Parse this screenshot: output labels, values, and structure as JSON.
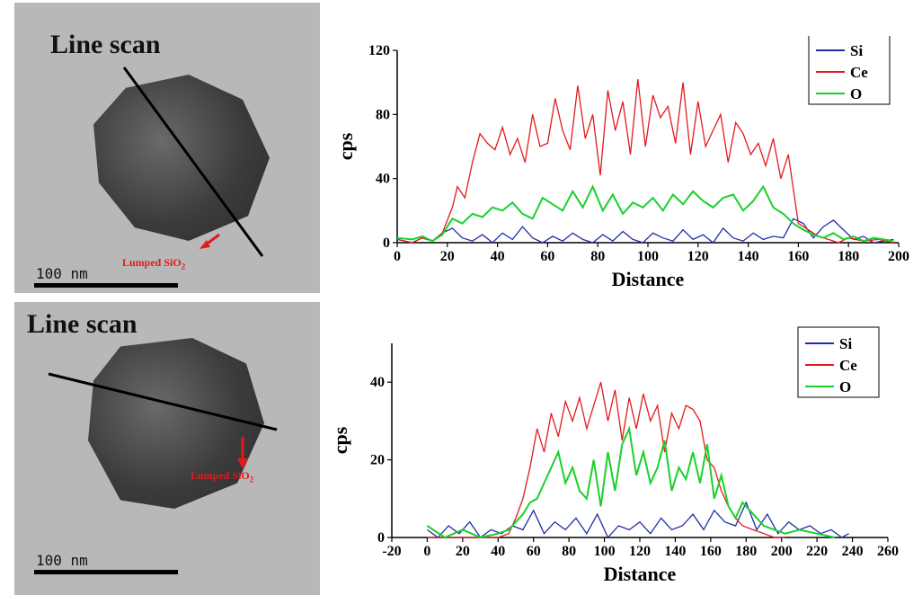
{
  "images": [
    {
      "title": "Line scan",
      "annotation_main": "Lumped SiO",
      "annotation_sub": "2",
      "scale": "100 nm"
    },
    {
      "title": "Line scan",
      "annotation_main": "Lumped SiO",
      "annotation_sub": "2",
      "scale": "100 nm"
    }
  ],
  "colors": {
    "Si": "#1f2ea8",
    "Ce": "#e31a1c",
    "O": "#19d12a"
  },
  "chart_data": [
    {
      "type": "line",
      "xlabel": "Distance",
      "ylabel": "cps",
      "xlim": [
        0,
        200
      ],
      "ylim": [
        0,
        120
      ],
      "xticks": [
        0,
        20,
        40,
        60,
        80,
        100,
        120,
        140,
        160,
        180,
        200
      ],
      "yticks": [
        0,
        40,
        80,
        120
      ],
      "legend_position": "top-right",
      "series": [
        {
          "name": "Si",
          "x": [
            0,
            6,
            10,
            14,
            18,
            22,
            26,
            30,
            34,
            38,
            42,
            46,
            50,
            54,
            58,
            62,
            66,
            70,
            74,
            78,
            82,
            86,
            90,
            94,
            98,
            102,
            106,
            110,
            114,
            118,
            122,
            126,
            130,
            134,
            138,
            142,
            146,
            150,
            154,
            158,
            162,
            166,
            170,
            174,
            178,
            182,
            186,
            190,
            194,
            198
          ],
          "values": [
            2,
            0,
            3,
            1,
            6,
            9,
            3,
            1,
            5,
            0,
            6,
            2,
            10,
            3,
            0,
            4,
            1,
            6,
            2,
            0,
            5,
            1,
            7,
            2,
            0,
            6,
            3,
            1,
            8,
            2,
            5,
            0,
            9,
            3,
            1,
            6,
            2,
            4,
            3,
            15,
            12,
            3,
            10,
            14,
            8,
            2,
            4,
            0,
            1,
            2
          ]
        },
        {
          "name": "Ce",
          "x": [
            0,
            6,
            10,
            14,
            18,
            22,
            24,
            27,
            30,
            33,
            36,
            39,
            42,
            45,
            48,
            51,
            54,
            57,
            60,
            63,
            66,
            69,
            72,
            75,
            78,
            81,
            84,
            87,
            90,
            93,
            96,
            99,
            102,
            105,
            108,
            111,
            114,
            117,
            120,
            123,
            126,
            129,
            132,
            135,
            138,
            141,
            144,
            147,
            150,
            153,
            156,
            160,
            164,
            168,
            172,
            176,
            180,
            186,
            192,
            198
          ],
          "values": [
            2,
            0,
            3,
            1,
            6,
            22,
            35,
            28,
            50,
            68,
            62,
            58,
            72,
            55,
            65,
            50,
            80,
            60,
            62,
            90,
            70,
            58,
            98,
            65,
            80,
            42,
            95,
            70,
            88,
            55,
            102,
            60,
            92,
            78,
            85,
            62,
            100,
            55,
            88,
            60,
            70,
            80,
            50,
            75,
            68,
            55,
            62,
            48,
            65,
            40,
            55,
            12,
            8,
            4,
            2,
            0,
            3,
            1,
            2,
            0
          ]
        },
        {
          "name": "O",
          "x": [
            0,
            6,
            10,
            14,
            18,
            22,
            26,
            30,
            34,
            38,
            42,
            46,
            50,
            54,
            58,
            62,
            66,
            70,
            74,
            78,
            82,
            86,
            90,
            94,
            98,
            102,
            106,
            110,
            114,
            118,
            122,
            126,
            130,
            134,
            138,
            142,
            146,
            150,
            154,
            158,
            162,
            166,
            170,
            174,
            178,
            182,
            186,
            190,
            194,
            198
          ],
          "values": [
            3,
            2,
            4,
            1,
            5,
            15,
            12,
            18,
            16,
            22,
            20,
            25,
            18,
            15,
            28,
            24,
            20,
            32,
            22,
            35,
            20,
            30,
            18,
            25,
            22,
            28,
            20,
            30,
            24,
            32,
            26,
            22,
            28,
            30,
            20,
            26,
            35,
            22,
            18,
            12,
            8,
            5,
            3,
            6,
            2,
            4,
            1,
            3,
            2,
            1
          ]
        }
      ]
    },
    {
      "type": "line",
      "xlabel": "Distance",
      "ylabel": "cps",
      "xlim": [
        -20,
        260
      ],
      "ylim": [
        0,
        50
      ],
      "xticks": [
        -20,
        0,
        20,
        40,
        60,
        80,
        100,
        120,
        140,
        160,
        180,
        200,
        220,
        240,
        260
      ],
      "yticks": [
        0,
        20,
        40
      ],
      "legend_position": "top-right",
      "series": [
        {
          "name": "Si",
          "x": [
            0,
            6,
            12,
            18,
            24,
            30,
            36,
            42,
            48,
            54,
            60,
            66,
            72,
            78,
            84,
            90,
            96,
            102,
            108,
            114,
            120,
            126,
            132,
            138,
            144,
            150,
            156,
            162,
            168,
            174,
            180,
            186,
            192,
            198,
            204,
            210,
            216,
            222,
            228,
            234,
            238
          ],
          "values": [
            2,
            0,
            3,
            1,
            4,
            0,
            2,
            1,
            3,
            2,
            7,
            1,
            4,
            2,
            5,
            1,
            6,
            0,
            3,
            2,
            4,
            1,
            5,
            2,
            3,
            6,
            2,
            7,
            4,
            3,
            9,
            2,
            6,
            1,
            4,
            2,
            3,
            1,
            2,
            0,
            1
          ]
        },
        {
          "name": "Ce",
          "x": [
            0,
            10,
            20,
            30,
            40,
            46,
            50,
            54,
            58,
            62,
            66,
            70,
            74,
            78,
            82,
            86,
            90,
            94,
            98,
            102,
            106,
            110,
            114,
            118,
            122,
            126,
            130,
            134,
            138,
            142,
            146,
            150,
            154,
            158,
            162,
            166,
            170,
            174,
            178,
            184,
            190,
            196,
            202
          ],
          "values": [
            0,
            0,
            0,
            0,
            0,
            1,
            5,
            10,
            18,
            28,
            22,
            32,
            26,
            35,
            30,
            36,
            28,
            34,
            40,
            30,
            38,
            25,
            36,
            28,
            37,
            30,
            34,
            22,
            32,
            28,
            34,
            33,
            30,
            20,
            18,
            12,
            8,
            5,
            3,
            2,
            1,
            0,
            0
          ]
        },
        {
          "name": "O",
          "x": [
            0,
            10,
            20,
            30,
            40,
            46,
            50,
            54,
            58,
            62,
            66,
            70,
            74,
            78,
            82,
            86,
            90,
            94,
            98,
            102,
            106,
            110,
            114,
            118,
            122,
            126,
            130,
            134,
            138,
            142,
            146,
            150,
            154,
            158,
            162,
            166,
            170,
            174,
            178,
            184,
            190,
            196,
            202,
            210,
            220,
            230
          ],
          "values": [
            3,
            0,
            2,
            0,
            1,
            2,
            4,
            6,
            9,
            10,
            14,
            18,
            22,
            14,
            18,
            12,
            10,
            20,
            8,
            22,
            12,
            24,
            28,
            16,
            22,
            14,
            18,
            25,
            12,
            18,
            15,
            22,
            14,
            24,
            10,
            16,
            8,
            5,
            9,
            6,
            3,
            2,
            1,
            2,
            1,
            0
          ]
        }
      ]
    }
  ]
}
